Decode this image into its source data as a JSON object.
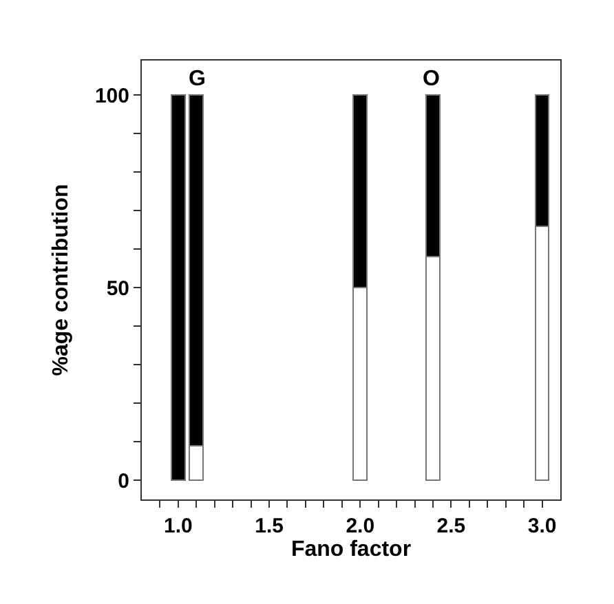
{
  "chart_data": {
    "type": "bar",
    "stacked": true,
    "xlabel": "Fano factor",
    "ylabel": "%age contribution",
    "x": [
      1.0,
      1.1,
      2.0,
      2.4,
      3.0
    ],
    "series": [
      {
        "color": "#ffffff",
        "values": [
          0,
          9,
          50,
          58,
          66
        ]
      },
      {
        "color": "#000000",
        "values": [
          100,
          91,
          50,
          42,
          34
        ]
      }
    ],
    "xlim": [
      0.8,
      3.1
    ],
    "ylim": [
      -5,
      109
    ],
    "xticks": [
      {
        "value": 0.9,
        "label": null
      },
      {
        "value": 1,
        "label": "1.0"
      },
      {
        "value": 1.1,
        "label": null
      },
      {
        "value": 1.2,
        "label": null
      },
      {
        "value": 1.3,
        "label": null
      },
      {
        "value": 1.4,
        "label": null
      },
      1.5,
      {
        "value": 1.6,
        "label": null
      },
      {
        "value": 1.7,
        "label": null
      },
      {
        "value": 1.8,
        "label": null
      },
      {
        "value": 1.9,
        "label": null
      },
      {
        "value": 2,
        "label": "2.0"
      },
      {
        "value": 2.1,
        "label": null
      },
      {
        "value": 2.2,
        "label": null
      },
      {
        "value": 2.3,
        "label": null
      },
      {
        "value": 2.4,
        "label": null
      },
      2.5,
      {
        "value": 2.6,
        "label": null
      },
      {
        "value": 2.7,
        "label": null
      },
      {
        "value": 2.8,
        "label": null
      },
      {
        "value": 2.9,
        "label": null
      },
      {
        "value": 3,
        "label": "3.0"
      }
    ],
    "yticks": [
      0,
      {
        "value": 10,
        "label": null
      },
      {
        "value": 20,
        "label": null
      },
      {
        "value": 30,
        "label": null
      },
      {
        "value": 40,
        "label": null
      },
      50,
      {
        "value": 60,
        "label": null
      },
      {
        "value": 70,
        "label": null
      },
      {
        "value": 80,
        "label": null
      },
      {
        "value": 90,
        "label": null
      },
      100
    ],
    "annotations": [
      "G",
      "O"
    ],
    "legend": false
  }
}
